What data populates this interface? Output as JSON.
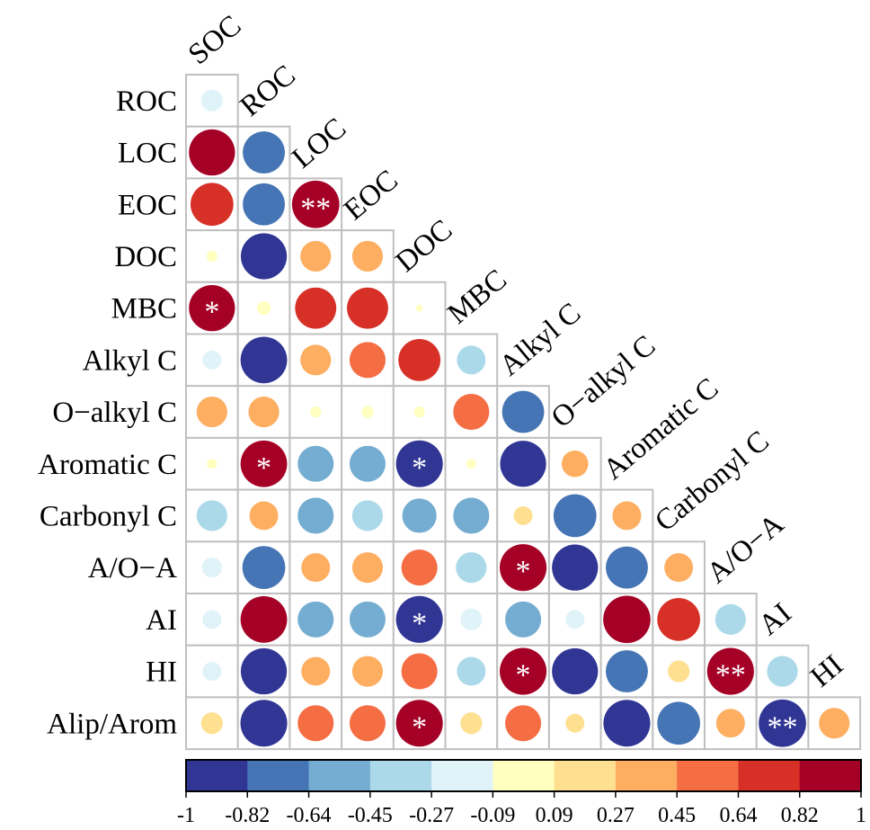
{
  "chart_data": {
    "type": "heatmap",
    "subtype": "correlation-circle-lower-triangle",
    "row_labels": [
      "ROC",
      "LOC",
      "EOC",
      "DOC",
      "MBC",
      "Alkyl C",
      "O−alkyl C",
      "Aromatic C",
      "Carbonyl C",
      "A/O−A",
      "AI",
      "HI",
      "Alip/Arom"
    ],
    "col_labels": [
      "SOC",
      "ROC",
      "LOC",
      "EOC",
      "DOC",
      "MBC",
      "Alkyl C",
      "O−alkyl C",
      "Aromatic C",
      "Carbonyl C",
      "A/O−A",
      "AI",
      "HI"
    ],
    "values": [
      [
        -0.2
      ],
      [
        0.9,
        -0.75
      ],
      [
        0.78,
        -0.75,
        0.95
      ],
      [
        0.05,
        -0.9,
        0.4,
        0.4
      ],
      [
        0.9,
        0.08,
        0.72,
        0.72,
        0.02
      ],
      [
        -0.15,
        -0.92,
        0.4,
        0.55,
        0.75,
        -0.35
      ],
      [
        0.4,
        0.4,
        0.05,
        0.06,
        0.05,
        0.55,
        -0.75
      ],
      [
        0.04,
        0.92,
        -0.55,
        -0.55,
        -0.93,
        0.04,
        -0.9,
        0.3
      ],
      [
        -0.4,
        0.35,
        -0.55,
        -0.4,
        -0.5,
        -0.55,
        0.15,
        -0.78,
        0.35
      ],
      [
        -0.17,
        -0.78,
        0.35,
        0.4,
        0.55,
        -0.4,
        0.93,
        -0.9,
        -0.75,
        0.35
      ],
      [
        -0.15,
        0.92,
        -0.55,
        -0.55,
        -0.93,
        -0.2,
        -0.55,
        -0.15,
        0.95,
        0.78,
        -0.4
      ],
      [
        -0.15,
        -0.9,
        0.35,
        0.4,
        0.55,
        -0.35,
        0.93,
        -0.9,
        -0.75,
        0.2,
        0.93,
        -0.4
      ],
      [
        0.2,
        -0.93,
        0.55,
        0.55,
        0.93,
        0.2,
        0.55,
        0.15,
        -0.93,
        -0.78,
        0.35,
        -0.95,
        0.4
      ]
    ],
    "significance": [
      [
        ""
      ],
      [
        "",
        ""
      ],
      [
        "",
        "",
        "**"
      ],
      [
        "",
        "",
        "",
        ""
      ],
      [
        "*",
        "",
        "",
        "",
        ""
      ],
      [
        "",
        "",
        "",
        "",
        "",
        ""
      ],
      [
        "",
        "",
        "",
        "",
        "",
        "",
        ""
      ],
      [
        "",
        "*",
        "",
        "",
        "*",
        "",
        "",
        ""
      ],
      [
        "",
        "",
        "",
        "",
        "",
        "",
        "",
        "",
        ""
      ],
      [
        "",
        "",
        "",
        "",
        "",
        "",
        "*",
        "",
        "",
        ""
      ],
      [
        "",
        "",
        "",
        "",
        "*",
        "",
        "",
        "",
        "",
        "",
        ""
      ],
      [
        "",
        "",
        "",
        "",
        "",
        "",
        "*",
        "",
        "",
        "",
        "**",
        ""
      ],
      [
        "",
        "",
        "",
        "",
        "*",
        "",
        "",
        "",
        "",
        "",
        "",
        "**",
        ""
      ]
    ],
    "colorbar": {
      "range": [
        -1,
        1
      ],
      "tick_labels": [
        "-1",
        "-0.82",
        "-0.64",
        "-0.45",
        "-0.27",
        "-0.09",
        "0.09",
        "0.27",
        "0.45",
        "0.64",
        "0.82",
        "1"
      ],
      "colors": [
        "#313695",
        "#4575b4",
        "#74add1",
        "#abd9e9",
        "#e0f3f8",
        "#ffffbf",
        "#fee090",
        "#fdae61",
        "#f46d43",
        "#d73027",
        "#a50026"
      ]
    },
    "legend_placement": "bottom"
  }
}
